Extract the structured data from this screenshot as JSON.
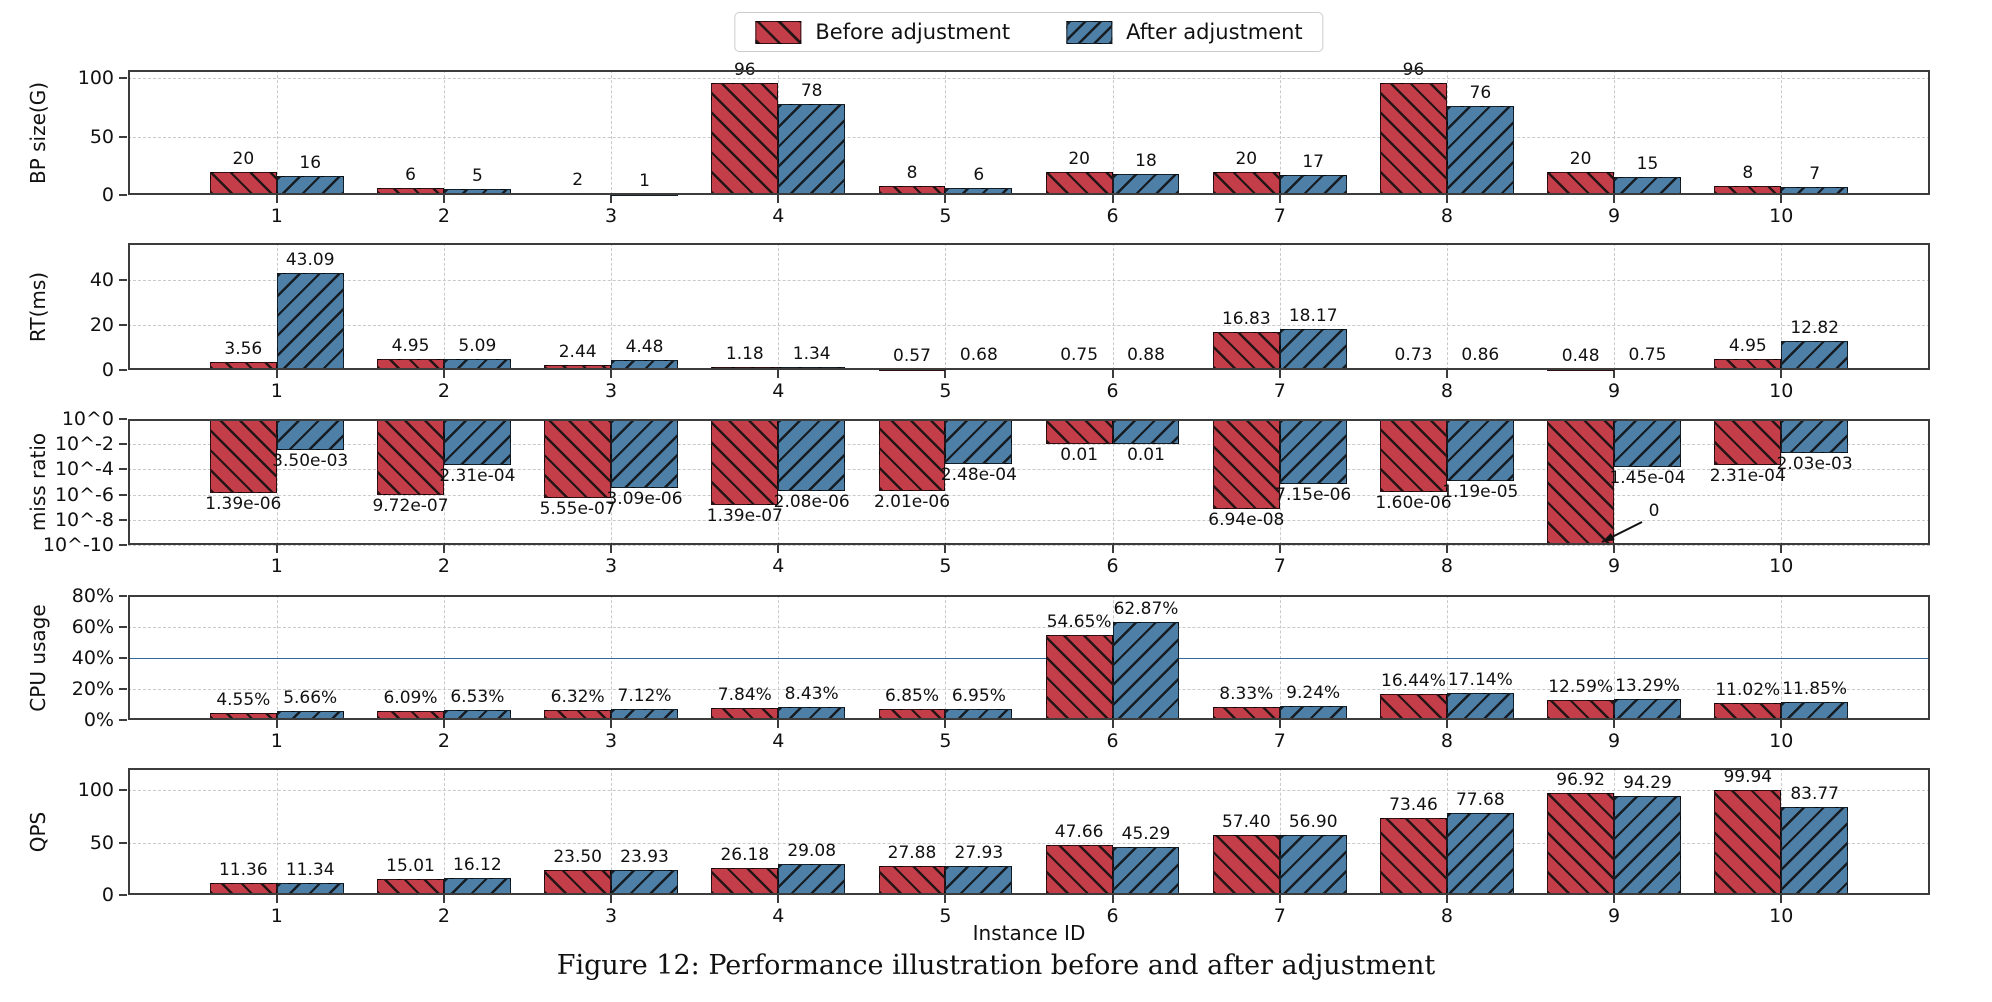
{
  "figure": {
    "caption": "Figure 12: Performance illustration before and after adjustment"
  },
  "legend": {
    "items": [
      {
        "label": "Before adjustment"
      },
      {
        "label": "After adjustment"
      }
    ]
  },
  "xlabel": "Instance ID",
  "colors": {
    "before": "#c43e4a",
    "after": "#4e7fa6",
    "hatch": "#141414",
    "grid": "#c9c9c9",
    "spine": "#3c3c3c",
    "threshold": "#34689a"
  },
  "chart_data": [
    {
      "id": "bp-size",
      "type": "bar",
      "ylabel": "BP size(G)",
      "scale": "linear",
      "ylim": [
        0,
        107
      ],
      "grid": true,
      "legend_position": "top-center",
      "yticks": [
        {
          "label": "0",
          "value": 0
        },
        {
          "label": "50",
          "value": 50
        },
        {
          "label": "100",
          "value": 100
        }
      ],
      "categories": [
        "1",
        "2",
        "3",
        "4",
        "5",
        "6",
        "7",
        "8",
        "9",
        "10"
      ],
      "series": [
        {
          "name": "Before adjustment",
          "values": [
            20,
            6,
            2,
            96,
            8,
            20,
            20,
            96,
            20,
            8
          ],
          "labels": [
            "20",
            "6",
            "2",
            "96",
            "8",
            "20",
            "20",
            "96",
            "20",
            "8"
          ]
        },
        {
          "name": "After adjustment",
          "values": [
            16,
            5,
            1,
            78,
            6,
            18,
            17,
            76,
            15,
            7
          ],
          "labels": [
            "16",
            "5",
            "1",
            "78",
            "6",
            "18",
            "17",
            "76",
            "15",
            "7"
          ]
        }
      ]
    },
    {
      "id": "rt",
      "type": "bar",
      "ylabel": "RT(ms)",
      "scale": "linear",
      "ylim": [
        0,
        56.5
      ],
      "grid": true,
      "yticks": [
        {
          "label": "0",
          "value": 0
        },
        {
          "label": "20",
          "value": 20
        },
        {
          "label": "40",
          "value": 40
        }
      ],
      "categories": [
        "1",
        "2",
        "3",
        "4",
        "5",
        "6",
        "7",
        "8",
        "9",
        "10"
      ],
      "series": [
        {
          "name": "Before adjustment",
          "values": [
            3.56,
            4.95,
            2.44,
            1.18,
            0.57,
            0.75,
            16.83,
            0.73,
            0.48,
            4.95
          ],
          "labels": [
            "3.56",
            "4.95",
            "2.44",
            "1.18",
            "0.57",
            "0.75",
            "16.83",
            "0.73",
            "0.48",
            "4.95"
          ]
        },
        {
          "name": "After adjustment",
          "values": [
            43.09,
            5.09,
            4.48,
            1.34,
            0.68,
            0.88,
            18.17,
            0.86,
            0.75,
            12.82
          ],
          "labels": [
            "43.09",
            "5.09",
            "4.48",
            "1.34",
            "0.68",
            "0.88",
            "18.17",
            "0.86",
            "0.75",
            "12.82"
          ]
        }
      ]
    },
    {
      "id": "miss-ratio",
      "type": "bar",
      "ylabel": "miss ratio",
      "scale": "log",
      "ylim": [
        1e-10,
        1
      ],
      "grid": true,
      "bars_hang_from_top": true,
      "yticks": [
        {
          "label": "10^0",
          "value": 0
        },
        {
          "label": "10^-2",
          "value": -2
        },
        {
          "label": "10^-4",
          "value": -4
        },
        {
          "label": "10^-6",
          "value": -6
        },
        {
          "label": "10^-8",
          "value": -8
        },
        {
          "label": "10^-10",
          "value": -10
        }
      ],
      "categories": [
        "1",
        "2",
        "3",
        "4",
        "5",
        "6",
        "7",
        "8",
        "9",
        "10"
      ],
      "series": [
        {
          "name": "Before adjustment",
          "values": [
            1.39e-06,
            9.72e-07,
            5.55e-07,
            1.39e-07,
            2.01e-06,
            0.01,
            6.94e-08,
            1.6e-06,
            0,
            0.000231
          ],
          "labels": [
            "1.39e-06",
            "9.72e-07",
            "5.55e-07",
            "1.39e-07",
            "2.01e-06",
            "0.01",
            "6.94e-08",
            "1.60e-06",
            "",
            "2.31e-04"
          ]
        },
        {
          "name": "After adjustment",
          "values": [
            0.0035,
            0.000231,
            3.09e-06,
            2.08e-06,
            0.000248,
            0.01,
            7.15e-06,
            1.19e-05,
            0.000145,
            0.00203
          ],
          "labels": [
            "3.50e-03",
            "2.31e-04",
            "3.09e-06",
            "2.08e-06",
            "2.48e-04",
            "0.01",
            "7.15e-06",
            "1.19e-05",
            "1.45e-04",
            "2.03e-03"
          ]
        }
      ],
      "annotation": {
        "text": "0",
        "index": 8,
        "series": "before"
      }
    },
    {
      "id": "cpu-usage",
      "type": "bar",
      "ylabel": "CPU usage",
      "scale": "linear",
      "ylim": [
        0,
        80.5
      ],
      "grid": true,
      "yticks": [
        {
          "label": "0%",
          "value": 0
        },
        {
          "label": "20%",
          "value": 20
        },
        {
          "label": "40%",
          "value": 40
        },
        {
          "label": "60%",
          "value": 60
        },
        {
          "label": "80%",
          "value": 80
        }
      ],
      "threshold_line": {
        "value": 40
      },
      "categories": [
        "1",
        "2",
        "3",
        "4",
        "5",
        "6",
        "7",
        "8",
        "9",
        "10"
      ],
      "series": [
        {
          "name": "Before adjustment",
          "values": [
            4.55,
            6.09,
            6.32,
            7.84,
            6.85,
            54.65,
            8.33,
            16.44,
            12.59,
            11.02
          ],
          "labels": [
            "4.55%",
            "6.09%",
            "6.32%",
            "7.84%",
            "6.85%",
            "54.65%",
            "8.33%",
            "16.44%",
            "12.59%",
            "11.02%"
          ]
        },
        {
          "name": "After adjustment",
          "values": [
            5.66,
            6.53,
            7.12,
            8.43,
            6.95,
            62.87,
            9.24,
            17.14,
            13.29,
            11.85
          ],
          "labels": [
            "5.66%",
            "6.53%",
            "7.12%",
            "8.43%",
            "6.95%",
            "62.87%",
            "9.24%",
            "17.14%",
            "13.29%",
            "11.85%"
          ]
        }
      ]
    },
    {
      "id": "qps",
      "type": "bar",
      "ylabel": "QPS",
      "scale": "linear",
      "ylim": [
        0,
        121
      ],
      "grid": true,
      "xlabel": "Instance ID",
      "yticks": [
        {
          "label": "0",
          "value": 0
        },
        {
          "label": "50",
          "value": 50
        },
        {
          "label": "100",
          "value": 100
        }
      ],
      "categories": [
        "1",
        "2",
        "3",
        "4",
        "5",
        "6",
        "7",
        "8",
        "9",
        "10"
      ],
      "series": [
        {
          "name": "Before adjustment",
          "values": [
            11.36,
            15.01,
            23.5,
            26.18,
            27.88,
            47.66,
            57.4,
            73.46,
            96.92,
            99.94
          ],
          "labels": [
            "11.36",
            "15.01",
            "23.50",
            "26.18",
            "27.88",
            "47.66",
            "57.40",
            "73.46",
            "96.92",
            "99.94"
          ]
        },
        {
          "name": "After adjustment",
          "values": [
            11.34,
            16.12,
            23.93,
            29.08,
            27.93,
            45.29,
            56.9,
            77.68,
            94.29,
            83.77
          ],
          "labels": [
            "11.34",
            "16.12",
            "23.93",
            "29.08",
            "27.93",
            "45.29",
            "56.90",
            "77.68",
            "94.29",
            "83.77"
          ]
        }
      ]
    }
  ]
}
